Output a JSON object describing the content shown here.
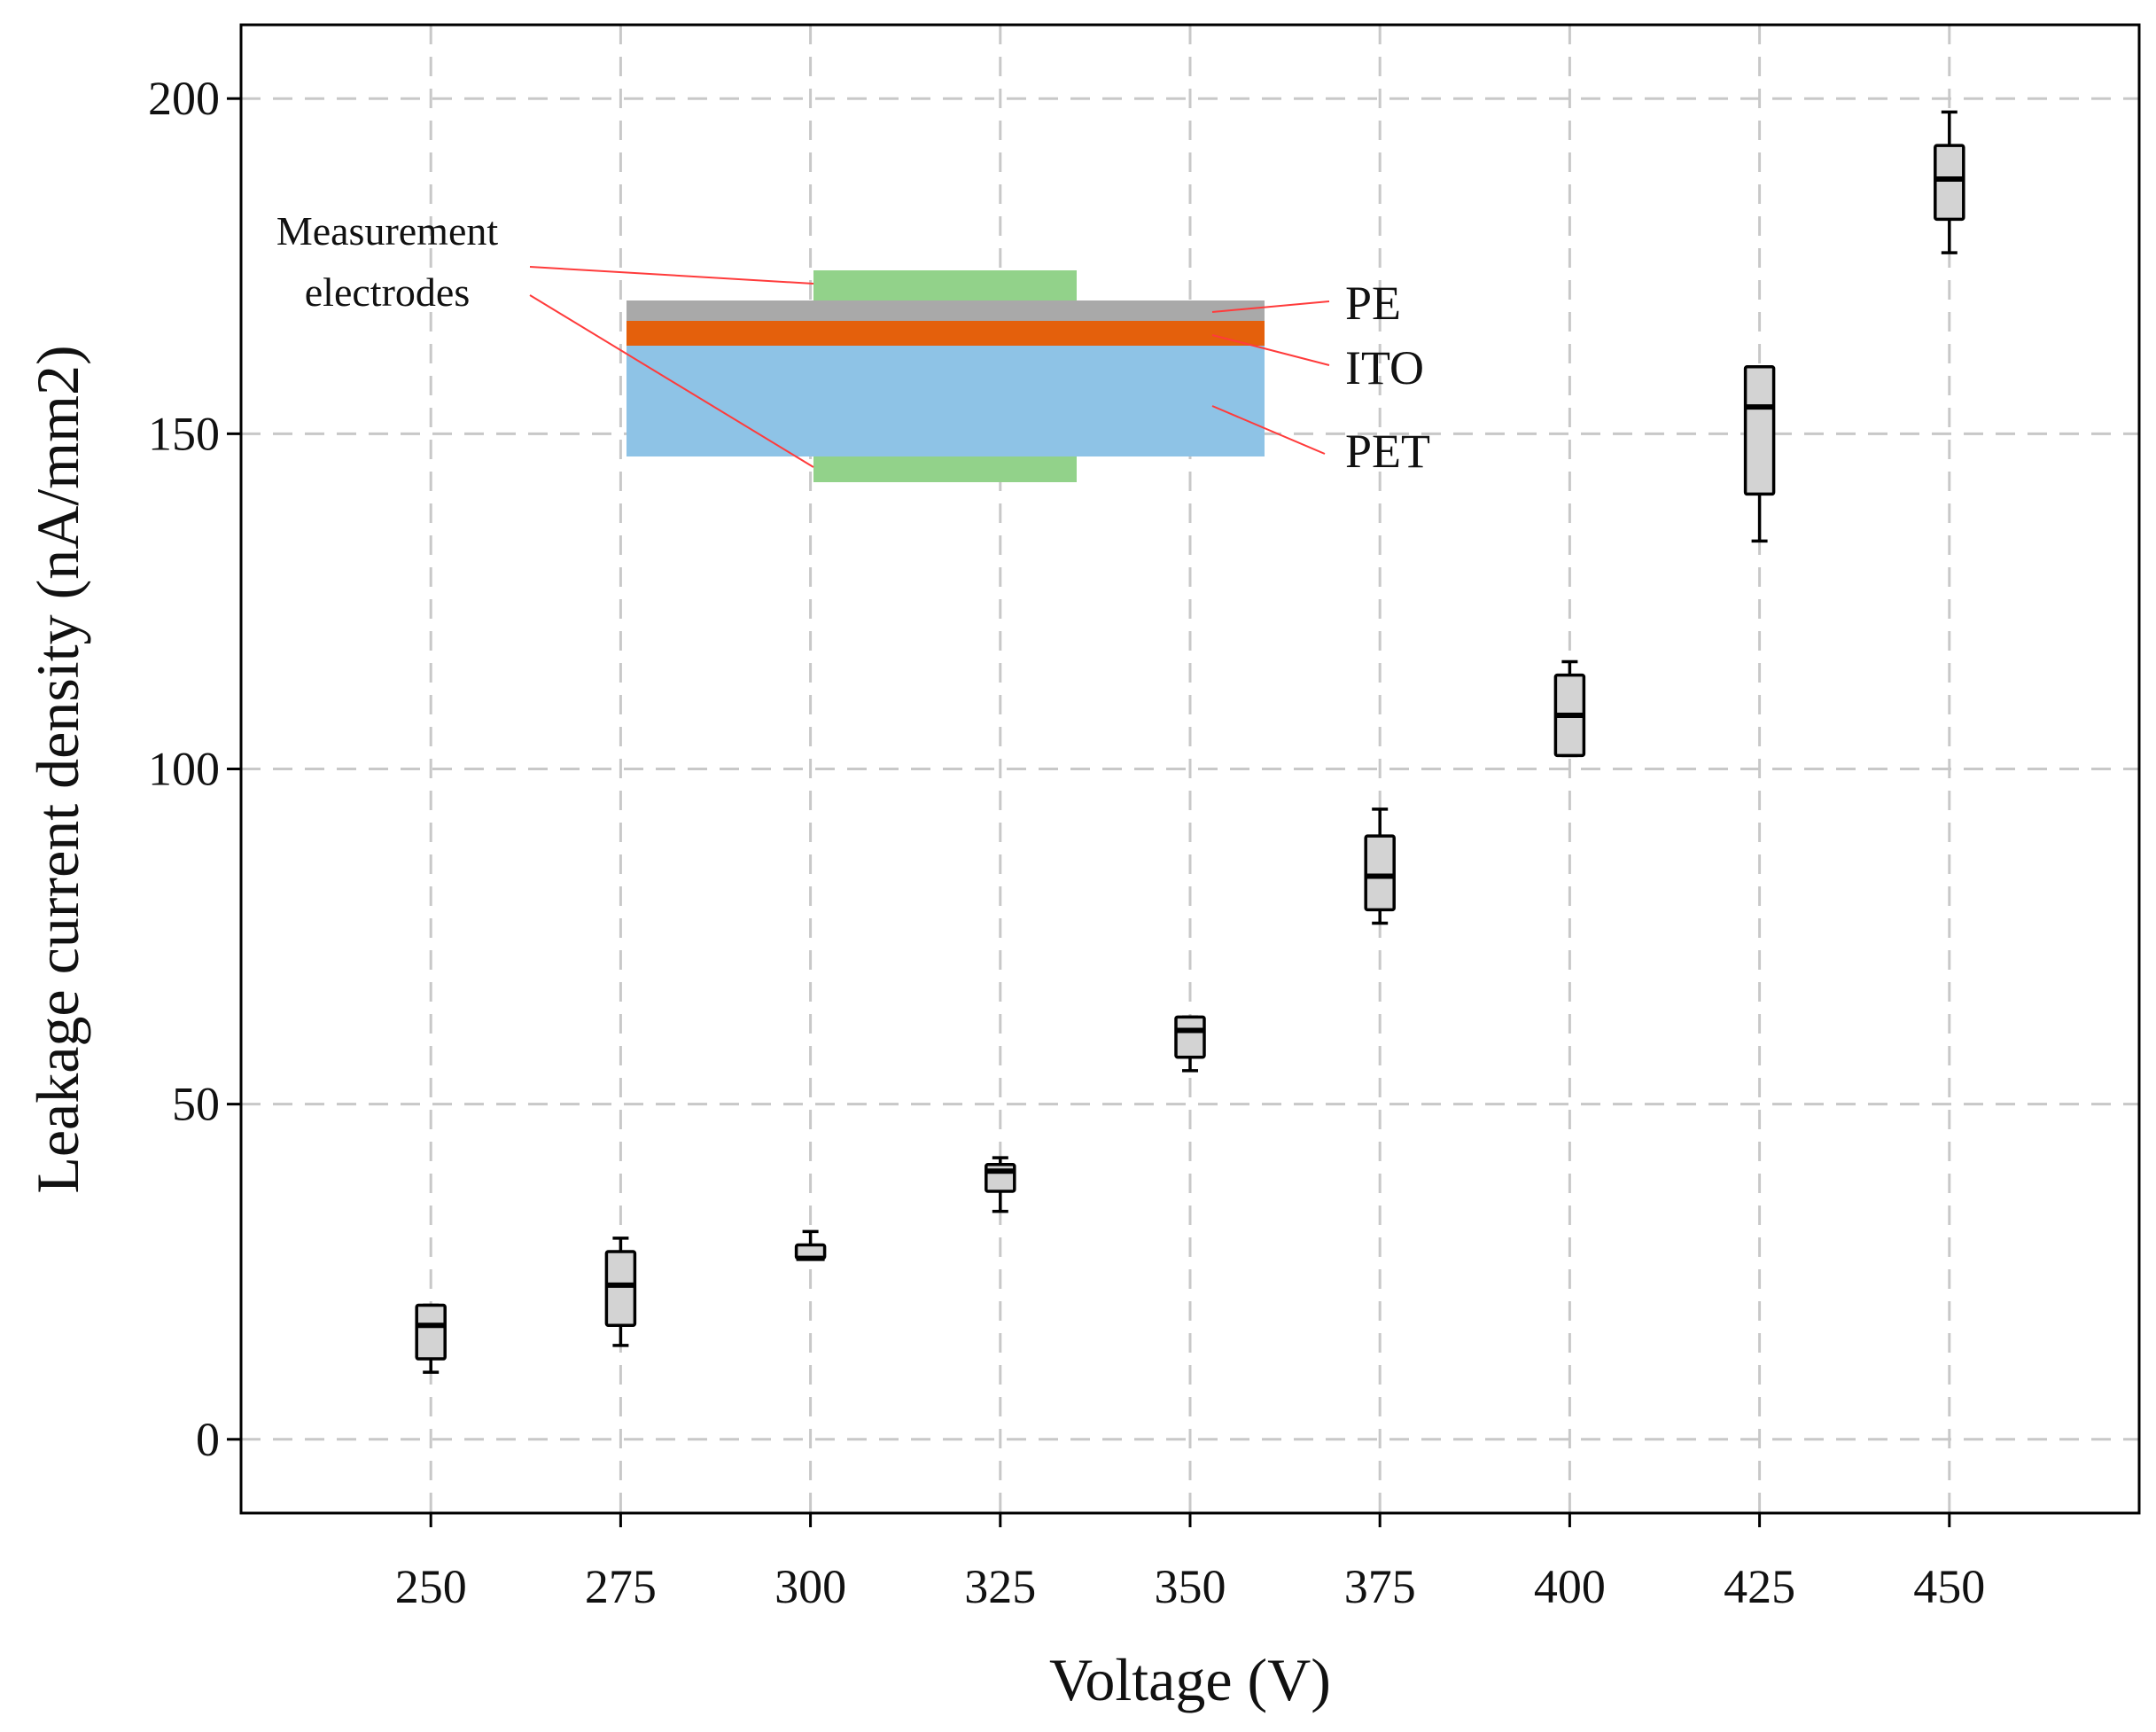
{
  "chart_data": {
    "type": "box",
    "title": "",
    "xlabel": "Voltage (V)",
    "ylabel": "Leakage current density (nA/mm2)",
    "xlim": [
      225,
      475
    ],
    "ylim": [
      -11,
      211
    ],
    "xticks": [
      "250",
      "275",
      "300",
      "325",
      "350",
      "375",
      "400",
      "425",
      "450"
    ],
    "yticks": [
      "0",
      "50",
      "100",
      "150",
      "200"
    ],
    "grid": true,
    "categories": [
      250,
      275,
      300,
      325,
      350,
      375,
      400,
      425,
      450
    ],
    "boxes": [
      {
        "x": 250,
        "min": 10,
        "q1": 12,
        "median": 17,
        "q3": 20,
        "max": 20
      },
      {
        "x": 275,
        "min": 14,
        "q1": 17,
        "median": 23,
        "q3": 28,
        "max": 30
      },
      {
        "x": 300,
        "min": 27,
        "q1": 27,
        "median": 27,
        "q3": 29,
        "max": 31
      },
      {
        "x": 325,
        "min": 34,
        "q1": 37,
        "median": 40,
        "q3": 41,
        "max": 42
      },
      {
        "x": 350,
        "min": 55,
        "q1": 57,
        "median": 61,
        "q3": 63,
        "max": 63
      },
      {
        "x": 375,
        "min": 77,
        "q1": 79,
        "median": 84,
        "q3": 90,
        "max": 94
      },
      {
        "x": 400,
        "min": 102,
        "q1": 102,
        "median": 108,
        "q3": 114,
        "max": 116
      },
      {
        "x": 425,
        "min": 134,
        "q1": 141,
        "median": 154,
        "q3": 160,
        "max": 160
      },
      {
        "x": 450,
        "min": 177,
        "q1": 182,
        "median": 188,
        "q3": 193,
        "max": 198
      }
    ],
    "box_fill": "#d3d3d3",
    "annotations": {
      "measurement_line1": "Measurement",
      "measurement_line2": "electrodes",
      "layers": [
        "PE",
        "ITO",
        "PET"
      ],
      "colors": {
        "electrode": "#92d28a",
        "pe": "#a9a9a9",
        "ito": "#e4600c",
        "pet": "#8ec3e6",
        "leader": "#ff3b3b"
      }
    }
  }
}
